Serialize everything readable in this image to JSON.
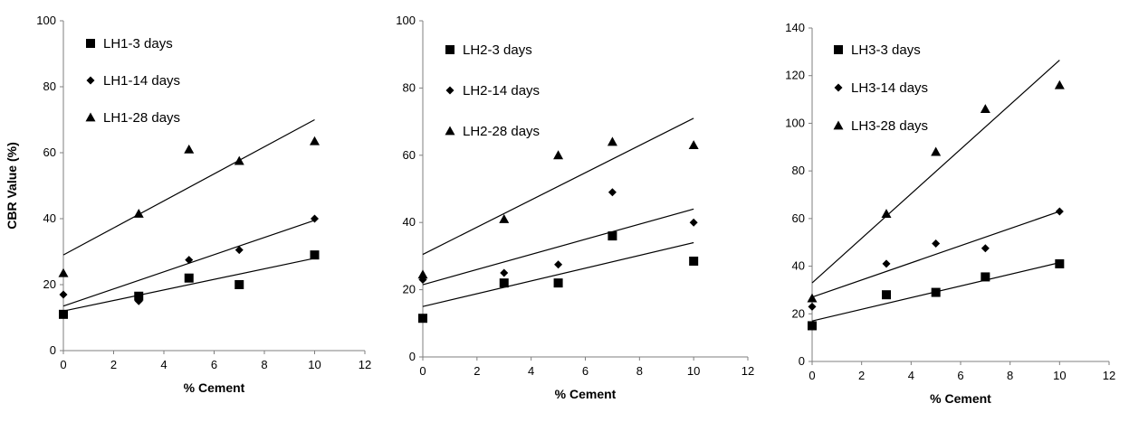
{
  "chart_data": [
    {
      "type": "scatter",
      "title": "",
      "xlabel": "% Cement",
      "ylabel": "CBR Value (%)",
      "xlim": [
        0,
        12
      ],
      "ylim": [
        0,
        100
      ],
      "xticks": [
        0,
        2,
        4,
        6,
        8,
        10,
        12
      ],
      "yticks": [
        0,
        20,
        40,
        60,
        80,
        100
      ],
      "grid": false,
      "legend_position": "top-left",
      "x": [
        0,
        3,
        5,
        7,
        10
      ],
      "series": [
        {
          "name": "LH1-3 days",
          "marker": "square",
          "values": [
            11,
            16.5,
            22,
            20,
            29
          ],
          "trendline": [
            12,
            28
          ]
        },
        {
          "name": "LH1-14 days",
          "marker": "diamond",
          "values": [
            17,
            15,
            27.5,
            30.5,
            40
          ],
          "trendline": [
            13.5,
            39.5
          ]
        },
        {
          "name": "LH1-28 days",
          "marker": "triangle",
          "values": [
            23.5,
            41.5,
            61,
            57.5,
            63.5
          ],
          "trendline": [
            29,
            70
          ]
        }
      ]
    },
    {
      "type": "scatter",
      "title": "",
      "xlabel": "% Cement",
      "ylabel": "",
      "xlim": [
        0,
        12
      ],
      "ylim": [
        0,
        100
      ],
      "xticks": [
        0,
        2,
        4,
        6,
        8,
        10,
        12
      ],
      "yticks": [
        0,
        20,
        40,
        60,
        80,
        100
      ],
      "grid": false,
      "legend_position": "top-left",
      "x": [
        0,
        3,
        5,
        7,
        10
      ],
      "series": [
        {
          "name": "LH2-3 days",
          "marker": "square",
          "values": [
            11.5,
            22,
            22,
            36,
            28.5
          ],
          "trendline": [
            15,
            34
          ]
        },
        {
          "name": "LH2-14 days",
          "marker": "diamond",
          "values": [
            23,
            25,
            27.5,
            49,
            40
          ],
          "trendline": [
            21.5,
            44
          ]
        },
        {
          "name": "LH2-28 days",
          "marker": "triangle",
          "values": [
            24.5,
            41,
            60,
            64,
            63
          ],
          "trendline": [
            30.5,
            71
          ]
        }
      ]
    },
    {
      "type": "scatter",
      "title": "",
      "xlabel": "% Cement",
      "ylabel": "",
      "xlim": [
        0,
        12
      ],
      "ylim": [
        0,
        140
      ],
      "xticks": [
        0,
        2,
        4,
        6,
        8,
        10,
        12
      ],
      "yticks": [
        0,
        20,
        40,
        60,
        80,
        100,
        120,
        140
      ],
      "grid": false,
      "legend_position": "top-left",
      "x": [
        0,
        3,
        5,
        7,
        10
      ],
      "series": [
        {
          "name": "LH3-3 days",
          "marker": "square",
          "values": [
            15,
            28,
            29,
            35.5,
            41
          ],
          "trendline": [
            17,
            41.5
          ]
        },
        {
          "name": "LH3-14 days",
          "marker": "diamond",
          "values": [
            23,
            41,
            49.5,
            47.5,
            63
          ],
          "trendline": [
            27,
            63
          ]
        },
        {
          "name": "LH3-28 days",
          "marker": "triangle",
          "values": [
            26.5,
            62,
            88,
            106,
            116
          ],
          "trendline": [
            33,
            126.5
          ]
        }
      ]
    }
  ]
}
